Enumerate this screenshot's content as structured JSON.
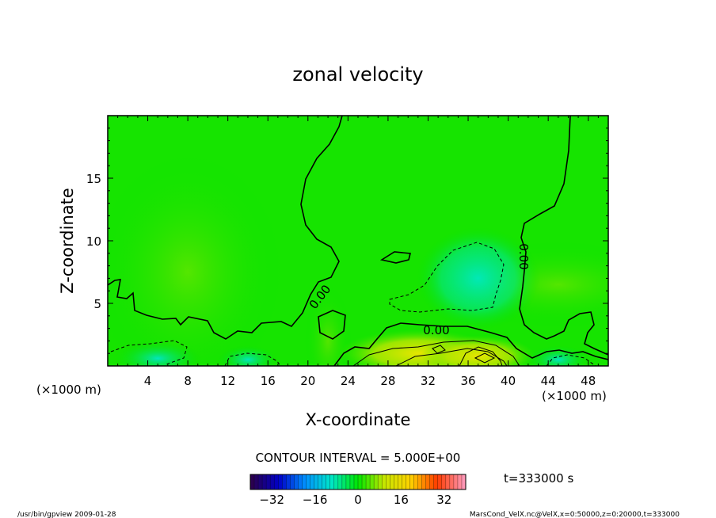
{
  "chart_data": {
    "type": "heatmap",
    "title": "zonal velocity",
    "xlabel": "X-coordinate",
    "ylabel": "Z-coordinate",
    "x_unit_left": "(×1000 m)",
    "x_unit_right": "(×1000 m)",
    "xlim": [
      0,
      50
    ],
    "ylim": [
      0,
      20
    ],
    "x_ticks": [
      4,
      8,
      12,
      16,
      20,
      24,
      28,
      32,
      36,
      40,
      44,
      48
    ],
    "y_ticks": [
      5,
      10,
      15
    ],
    "contour_interval_text": "CONTOUR INTERVAL = 5.000E+00",
    "contour_labels": [
      "0.00",
      "0.00",
      "0.00"
    ],
    "colorbar": {
      "range": [
        -40,
        40
      ],
      "ticks": [
        -32,
        -16,
        0,
        16,
        32
      ],
      "colors": [
        "#2a0050",
        "#0000c8",
        "#0090ff",
        "#00e6c8",
        "#00e600",
        "#c8e600",
        "#ffd200",
        "#ff3c00",
        "#ff96b4"
      ]
    },
    "time_text": "t=333000 s",
    "footer_left": "/usr/bin/gpview   2009-01-28",
    "footer_right": "MarsCond_VelX.nc@VelX,x=0:50000,z=0:20000,t=333000",
    "field_features": [
      {
        "x": 37,
        "z": 7.0,
        "value": -4
      },
      {
        "x": 37,
        "z": 0.8,
        "value": 9
      },
      {
        "x": 8,
        "z": 7.5,
        "value": 1.5
      },
      {
        "x": 45,
        "z": 6.5,
        "value": 1.2
      },
      {
        "x": 5,
        "z": 0.6,
        "value": -3
      },
      {
        "x": 14,
        "z": 0.5,
        "value": -3
      },
      {
        "x": 45,
        "z": 0.5,
        "value": -3
      },
      {
        "x": 22,
        "z": 2,
        "value": 1.2
      },
      {
        "x": 31,
        "z": 1,
        "value": 3
      }
    ]
  }
}
